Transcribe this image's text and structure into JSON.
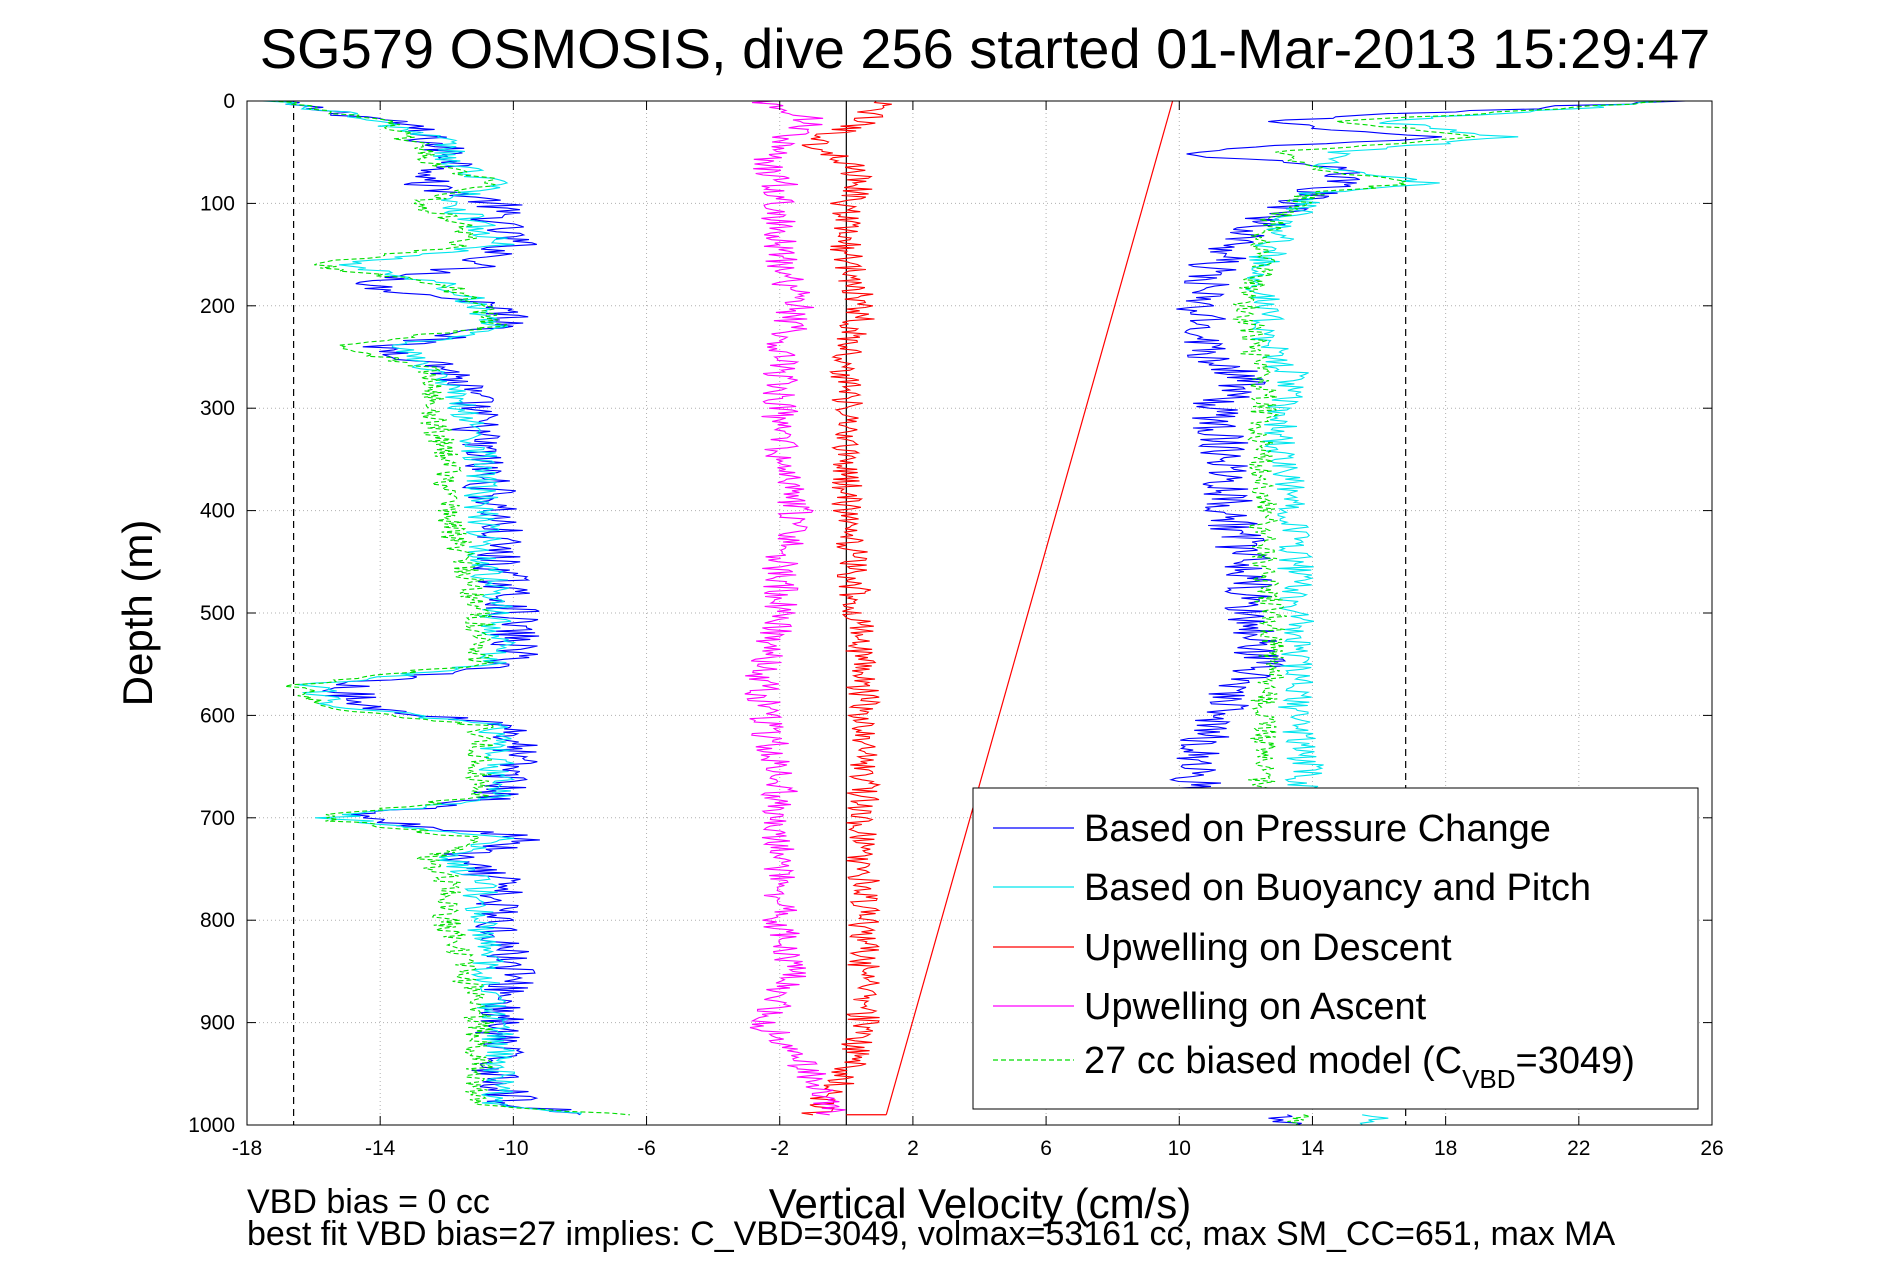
{
  "chart_data": {
    "type": "line",
    "title": "SG579 OSMOSIS, dive 256 started 01-Mar-2013 15:29:47",
    "xlabel": "Vertical Velocity (cm/s)",
    "ylabel": "Depth (m)",
    "xlim": [
      -18,
      26
    ],
    "ylim": [
      0,
      1000
    ],
    "y_reversed": true,
    "grid": true,
    "legend_position": "bottom-right",
    "x_ticks": [
      -18,
      -14,
      -10,
      -6,
      -2,
      2,
      6,
      10,
      14,
      18,
      22,
      26
    ],
    "y_ticks": [
      0,
      100,
      200,
      300,
      400,
      500,
      600,
      700,
      800,
      900,
      1000
    ],
    "reference_lines": [
      {
        "kind": "dashed-vertical",
        "x": -16.6,
        "color": "#000000"
      },
      {
        "kind": "dashed-vertical",
        "x": 16.8,
        "color": "#000000"
      },
      {
        "kind": "solid-vertical",
        "x": 0,
        "color": "#000000"
      }
    ],
    "series": [
      {
        "name": "Based on Pressure Change",
        "color": "#0000ff",
        "style": "solid",
        "segments": [
          {
            "depth": [
              0,
              20,
              40,
              60,
              80,
              100,
              120,
              140,
              160,
              180,
              200,
              220,
              240,
              260,
              280,
              300,
              350,
              400,
              450,
              500,
              550,
              570,
              590,
              610,
              650,
              680,
              700,
              720,
              740,
              760,
              800,
              850,
              900,
              950,
              980,
              990
            ],
            "x": [
              -17.5,
              -13.5,
              -12.5,
              -11.5,
              -12.8,
              -10.5,
              -10.5,
              -10.0,
              -11.0,
              -14.5,
              -10.3,
              -10.0,
              -14.0,
              -12.0,
              -11.5,
              -11.2,
              -11.0,
              -10.5,
              -10.5,
              -10.0,
              -10.0,
              -15.0,
              -14.8,
              -10.0,
              -10.0,
              -10.5,
              -15.0,
              -9.5,
              -12.0,
              -10.5,
              -10.5,
              -10.0,
              -10.5,
              -10.5,
              -10.0,
              -8.0
            ]
          },
          {
            "depth": [
              0,
              20,
              35,
              50,
              65,
              80,
              90,
              110,
              130,
              160,
              200,
              250,
              270,
              300,
              350,
              400,
              450,
              500,
              550,
              600,
              650,
              700,
              710
            ],
            "x": [
              25.0,
              12.0,
              18.0,
              10.0,
              14.5,
              15.0,
              14.0,
              13.0,
              12.0,
              11.0,
              10.5,
              11.0,
              12.0,
              11.0,
              11.5,
              11.5,
              12.0,
              12.0,
              12.5,
              11.0,
              10.5,
              10.5,
              10.5
            ]
          },
          {
            "depth": [
              990,
              1000
            ],
            "x": [
              13.0,
              13.5
            ]
          }
        ]
      },
      {
        "name": "Based on Buoyancy and Pitch",
        "color": "#00e5ee",
        "style": "solid",
        "segments": [
          {
            "depth": [
              0,
              20,
              40,
              60,
              80,
              100,
              120,
              140,
              160,
              180,
              200,
              220,
              240,
              260,
              280,
              300,
              350,
              400,
              450,
              500,
              550,
              570,
              590,
              610,
              650,
              680,
              700,
              720,
              740,
              760,
              800,
              850,
              900,
              950,
              980,
              990
            ],
            "x": [
              -17.0,
              -14.0,
              -12.0,
              -12.0,
              -10.5,
              -12.0,
              -11.0,
              -10.5,
              -15.0,
              -12.0,
              -11.0,
              -10.5,
              -13.5,
              -12.5,
              -12.0,
              -11.5,
              -11.0,
              -11.0,
              -10.8,
              -10.5,
              -10.5,
              -16.0,
              -15.5,
              -10.5,
              -10.5,
              -10.5,
              -15.5,
              -10.5,
              -12.0,
              -11.0,
              -11.0,
              -10.8,
              -10.5,
              -10.5,
              -10.5,
              -8.0
            ]
          },
          {
            "depth": [
              0,
              20,
              35,
              50,
              65,
              80,
              90,
              110,
              130,
              160,
              200,
              250,
              270,
              300,
              350,
              400,
              450,
              500,
              550,
              600,
              650,
              700,
              710
            ],
            "x": [
              25.0,
              16.0,
              20.0,
              15.0,
              14.5,
              17.5,
              14.0,
              13.5,
              13.0,
              12.5,
              12.5,
              12.8,
              13.5,
              13.0,
              13.0,
              13.5,
              13.5,
              13.5,
              13.5,
              13.5,
              13.8,
              13.5,
              13.5
            ]
          },
          {
            "depth": [
              990,
              1000
            ],
            "x": [
              16.0,
              15.5
            ]
          }
        ]
      },
      {
        "name": "Upwelling on Descent",
        "color": "#ff0000",
        "style": "solid",
        "segments": [
          {
            "depth": [
              0,
              20,
              40,
              60,
              80,
              100,
              150,
              200,
              250,
              300,
              350,
              400,
              450,
              500,
              550,
              600,
              650,
              700,
              750,
              800,
              850,
              900,
              950,
              990
            ],
            "x": [
              1.0,
              0.5,
              -1.0,
              0.0,
              0.5,
              0.0,
              0.0,
              0.5,
              0.0,
              0.0,
              0.0,
              0.0,
              0.2,
              0.3,
              0.5,
              0.5,
              0.5,
              0.5,
              0.5,
              0.5,
              0.5,
              0.5,
              0.0,
              -1.0
            ]
          }
        ]
      },
      {
        "name": "Upwelling on Ascent",
        "color": "#ff00ff",
        "style": "solid",
        "segments": [
          {
            "depth": [
              0,
              20,
              40,
              60,
              80,
              100,
              150,
              200,
              250,
              300,
              350,
              400,
              450,
              500,
              550,
              600,
              650,
              700,
              750,
              800,
              850,
              900,
              950,
              990
            ],
            "x": [
              -2.5,
              -1.0,
              -2.0,
              -2.5,
              -2.0,
              -2.0,
              -2.0,
              -1.5,
              -2.0,
              -2.0,
              -2.0,
              -1.5,
              -2.0,
              -2.0,
              -2.5,
              -2.5,
              -2.0,
              -2.0,
              -2.0,
              -2.0,
              -1.5,
              -2.5,
              -1.0,
              -0.5
            ]
          }
        ]
      },
      {
        "name": "27 cc biased model (C_VBD=3049)",
        "legend_label_prefix": "27 cc biased model (C",
        "legend_label_sub": "VBD",
        "legend_label_suffix": "=3049)",
        "color": "#00dd00",
        "style": "dashed",
        "segments": [
          {
            "depth": [
              0,
              20,
              40,
              60,
              80,
              100,
              120,
              140,
              160,
              180,
              200,
              220,
              240,
              260,
              280,
              300,
              350,
              400,
              450,
              500,
              550,
              570,
              590,
              610,
              650,
              680,
              700,
              720,
              740,
              760,
              800,
              850,
              900,
              950,
              980,
              990
            ],
            "x": [
              -17.0,
              -14.0,
              -13.0,
              -12.5,
              -10.5,
              -13.0,
              -11.5,
              -11.5,
              -16.0,
              -12.0,
              -11.0,
              -10.5,
              -15.5,
              -12.5,
              -12.5,
              -12.5,
              -12.0,
              -12.0,
              -11.5,
              -11.0,
              -11.0,
              -16.5,
              -16.0,
              -11.0,
              -11.0,
              -11.0,
              -16.0,
              -11.0,
              -12.5,
              -12.0,
              -12.0,
              -11.5,
              -11.0,
              -11.0,
              -11.0,
              -6.5
            ]
          },
          {
            "depth": [
              0,
              20,
              35,
              50,
              65,
              80,
              90,
              110,
              130,
              160,
              200,
              250,
              270,
              300,
              350,
              400,
              450,
              500,
              550,
              600,
              650,
              700,
              710
            ],
            "x": [
              25.0,
              15.0,
              19.0,
              13.0,
              14.0,
              17.0,
              14.0,
              13.0,
              12.5,
              12.5,
              12.0,
              12.3,
              12.5,
              12.5,
              12.5,
              12.5,
              12.5,
              12.8,
              12.8,
              12.5,
              12.5,
              12.5,
              12.5
            ]
          },
          {
            "depth": [
              990,
              1000
            ],
            "x": [
              14.0,
              13.5
            ]
          }
        ]
      }
    ],
    "overlay_lines": [
      {
        "color": "#ff0000",
        "style": "solid",
        "depth": [
          0,
          990
        ],
        "x": [
          9.8,
          1.2
        ]
      },
      {
        "color": "#ff0000",
        "style": "solid",
        "depth": [
          990,
          990
        ],
        "x": [
          0.0,
          1.2
        ]
      }
    ]
  },
  "footer": {
    "bias_text": "VBD bias = 0 cc",
    "fit_text": "best fit VBD bias=27 implies: C_VBD=3049, volmax=53161 cc, max SM_CC=651, max MA"
  }
}
